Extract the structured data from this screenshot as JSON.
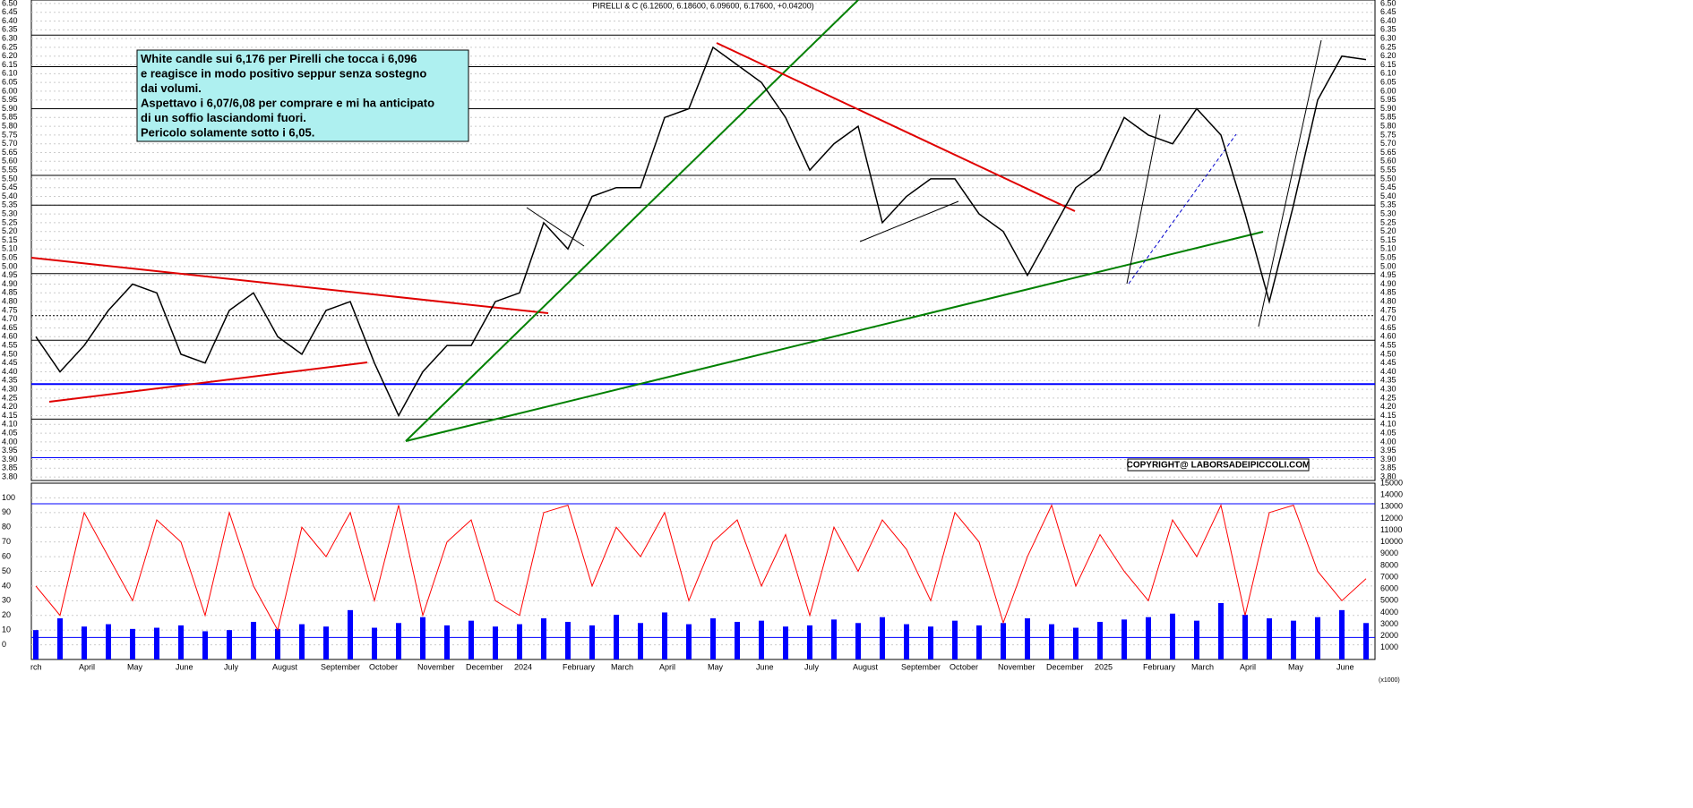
{
  "chart_data": {
    "type": "line",
    "title": "PIRELLI & C (6.12600, 6.18600, 6.09600, 6.17600, +0.04200)",
    "annotation": [
      "White candle sui 6,176 per Pirelli che tocca i 6,096",
      "e reagisce in modo positivo seppur senza sostegno",
      "dai volumi.",
      "Aspettavo i 6,07/6,08 per comprare e mi ha anticipato",
      "di un soffio lasciandomi fuori.",
      "Pericolo solamente sotto i 6,05."
    ],
    "copyright": "COPYRIGHT@ LABORSADEIPICCOLI.COM",
    "categories": [
      "rch",
      null,
      "April",
      null,
      "May",
      null,
      "June",
      null,
      "July",
      null,
      "August",
      null,
      "September",
      null,
      "October",
      null,
      "November",
      null,
      "December",
      null,
      "2024",
      null,
      "February",
      null,
      "March",
      null,
      "April",
      null,
      "May",
      null,
      "June",
      null,
      "July",
      null,
      "August",
      null,
      "September",
      null,
      "October",
      null,
      "November",
      null,
      "December",
      null,
      "2025",
      null,
      "February",
      null,
      "March",
      null,
      "April",
      null,
      "May",
      null,
      "June",
      null
    ],
    "series": [
      {
        "name": "PIRELLI & C",
        "color": "#000000",
        "values": [
          4.6,
          4.4,
          4.55,
          4.75,
          4.9,
          4.85,
          4.5,
          4.45,
          4.75,
          4.85,
          4.6,
          4.5,
          4.75,
          4.8,
          4.45,
          4.15,
          4.4,
          4.55,
          4.55,
          4.8,
          4.85,
          5.25,
          5.1,
          5.4,
          5.45,
          5.45,
          5.85,
          5.9,
          6.25,
          6.15,
          6.05,
          5.85,
          5.55,
          5.7,
          5.8,
          5.25,
          5.4,
          5.5,
          5.5,
          5.3,
          5.2,
          4.95,
          5.2,
          5.45,
          5.55,
          5.85,
          5.75,
          5.7,
          5.9,
          5.75,
          5.3,
          4.8,
          5.35,
          5.95,
          6.2,
          6.18
        ]
      }
    ],
    "levels": [
      6.32,
      6.14,
      5.9,
      5.52,
      5.35,
      4.96,
      4.72,
      4.58,
      4.33,
      4.13,
      3.91
    ],
    "ylim": [
      3.78,
      6.52
    ],
    "yticks": [
      {
        "value": 3.8,
        "label": "3.80"
      },
      {
        "value": 3.85,
        "label": "3.85"
      },
      {
        "value": 3.9,
        "label": "3.90"
      },
      {
        "value": 3.95,
        "label": "3.95"
      },
      {
        "value": 4.0,
        "label": "4.00"
      },
      {
        "value": 4.05,
        "label": "4.05"
      },
      {
        "value": 4.1,
        "label": "4.10"
      },
      {
        "value": 4.15,
        "label": "4.15"
      },
      {
        "value": 4.2,
        "label": "4.20"
      },
      {
        "value": 4.25,
        "label": "4.25"
      },
      {
        "value": 4.3,
        "label": "4.30"
      },
      {
        "value": 4.35,
        "label": "4.35"
      },
      {
        "value": 4.4,
        "label": "4.40"
      },
      {
        "value": 4.45,
        "label": "4.45"
      },
      {
        "value": 4.5,
        "label": "4.50"
      },
      {
        "value": 4.55,
        "label": "4.55"
      },
      {
        "value": 4.6,
        "label": "4.60"
      },
      {
        "value": 4.65,
        "label": "4.65"
      },
      {
        "value": 4.7,
        "label": "4.70"
      },
      {
        "value": 4.75,
        "label": "4.75"
      },
      {
        "value": 4.8,
        "label": "4.80"
      },
      {
        "value": 4.85,
        "label": "4.85"
      },
      {
        "value": 4.9,
        "label": "4.90"
      },
      {
        "value": 4.95,
        "label": "4.95"
      },
      {
        "value": 5.0,
        "label": "5.00"
      },
      {
        "value": 5.05,
        "label": "5.05"
      },
      {
        "value": 5.1,
        "label": "5.10"
      },
      {
        "value": 5.15,
        "label": "5.15"
      },
      {
        "value": 5.2,
        "label": "5.20"
      },
      {
        "value": 5.25,
        "label": "5.25"
      },
      {
        "value": 5.3,
        "label": "5.30"
      },
      {
        "value": 5.35,
        "label": "5.35"
      },
      {
        "value": 5.4,
        "label": "5.40"
      },
      {
        "value": 5.45,
        "label": "5.45"
      },
      {
        "value": 5.5,
        "label": "5.50"
      },
      {
        "value": 5.55,
        "label": "5.55"
      },
      {
        "value": 5.6,
        "label": "5.60"
      },
      {
        "value": 5.65,
        "label": "5.65"
      },
      {
        "value": 5.7,
        "label": "5.70"
      },
      {
        "value": 5.75,
        "label": "5.75"
      },
      {
        "value": 5.8,
        "label": "5.80"
      },
      {
        "value": 5.85,
        "label": "5.85"
      },
      {
        "value": 5.9,
        "label": "5.90"
      },
      {
        "value": 5.95,
        "label": "5.95"
      },
      {
        "value": 6.0,
        "label": "6.00"
      },
      {
        "value": 6.05,
        "label": "6.05"
      },
      {
        "value": 6.1,
        "label": "6.10"
      },
      {
        "value": 6.15,
        "label": "6.15"
      },
      {
        "value": 6.2,
        "label": "6.20"
      },
      {
        "value": 6.25,
        "label": "6.25"
      },
      {
        "value": 6.3,
        "label": "6.30"
      },
      {
        "value": 6.35,
        "label": "6.35"
      },
      {
        "value": 6.4,
        "label": "6.40"
      },
      {
        "value": 6.45,
        "label": "6.45"
      },
      {
        "value": 6.5,
        "label": "6.50"
      }
    ],
    "oscillator": {
      "color": "#ff0000",
      "values": [
        40,
        20,
        90,
        60,
        30,
        85,
        70,
        20,
        90,
        40,
        10,
        80,
        60,
        90,
        30,
        95,
        20,
        70,
        85,
        30,
        20,
        90,
        95,
        40,
        80,
        60,
        90,
        30,
        70,
        85,
        40,
        75,
        20,
        80,
        50,
        85,
        65,
        30,
        90,
        70,
        15,
        60,
        95,
        40,
        75,
        50,
        30,
        85,
        60,
        95,
        20,
        90,
        95,
        50,
        30,
        45
      ],
      "levels": [
        96,
        5
      ],
      "ylim": [
        -10,
        110
      ],
      "yticks": [
        0,
        10,
        20,
        30,
        40,
        50,
        60,
        70,
        80,
        90,
        100
      ]
    },
    "volume": {
      "color": "#0000ff",
      "unit": "(x1000)",
      "values": [
        2500,
        3500,
        2800,
        3000,
        2600,
        2700,
        2900,
        2400,
        2500,
        3200,
        2600,
        3000,
        2800,
        4200,
        2700,
        3100,
        3600,
        2900,
        3300,
        2800,
        3000,
        3500,
        3200,
        2900,
        3800,
        3100,
        4000,
        3000,
        3500,
        3200,
        3300,
        2800,
        2900,
        3400,
        3100,
        3600,
        3000,
        2800,
        3300,
        2900,
        3100,
        3500,
        3000,
        2700,
        3200,
        3400,
        3600,
        3900,
        3300,
        4800,
        3800,
        3500,
        3300,
        3600,
        4200,
        3100
      ],
      "ylim": [
        0,
        15000
      ],
      "yticks": [
        1000,
        2000,
        3000,
        4000,
        5000,
        6000,
        7000,
        8000,
        9000,
        10000,
        11000,
        12000,
        13000,
        14000,
        15000
      ]
    }
  }
}
